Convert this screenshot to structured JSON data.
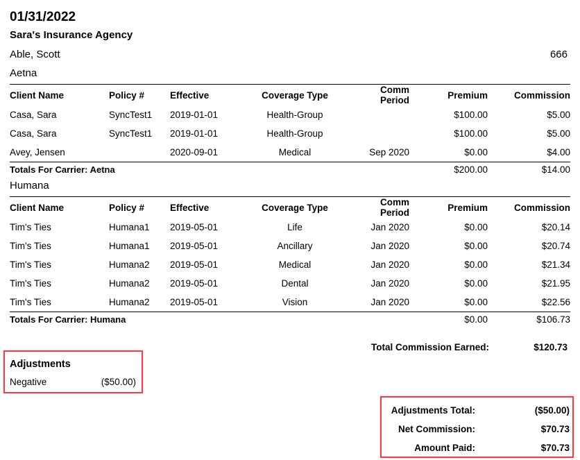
{
  "report": {
    "date": "01/31/2022",
    "agency": "Sara's Insurance Agency",
    "agent_name": "Able, Scott",
    "agent_id": "666"
  },
  "columns": [
    "Client Name",
    "Policy #",
    "Effective",
    "Coverage Type",
    "Comm Period",
    "Premium",
    "Commission"
  ],
  "carriers": [
    {
      "name": "Aetna",
      "rows": [
        {
          "client": "Casa, Sara",
          "policy": "SyncTest1",
          "effective": "2019-01-01",
          "coverage": "Health-Group",
          "period": "",
          "premium": "$100.00",
          "commission": "$5.00"
        },
        {
          "client": "Casa, Sara",
          "policy": "SyncTest1",
          "effective": "2019-01-01",
          "coverage": "Health-Group",
          "period": "",
          "premium": "$100.00",
          "commission": "$5.00"
        },
        {
          "client": "Avey, Jensen",
          "policy": "",
          "effective": "2020-09-01",
          "coverage": "Medical",
          "period": "Sep 2020",
          "premium": "$0.00",
          "commission": "$4.00"
        }
      ],
      "totals_label": "Totals For Carrier: Aetna",
      "total_premium": "$200.00",
      "total_commission": "$14.00"
    },
    {
      "name": "Humana",
      "rows": [
        {
          "client": "Tim's Ties",
          "policy": "Humana1",
          "effective": "2019-05-01",
          "coverage": "Life",
          "period": "Jan 2020",
          "premium": "$0.00",
          "commission": "$20.14"
        },
        {
          "client": "Tim's Ties",
          "policy": "Humana1",
          "effective": "2019-05-01",
          "coverage": "Ancillary",
          "period": "Jan 2020",
          "premium": "$0.00",
          "commission": "$20.74"
        },
        {
          "client": "Tim's Ties",
          "policy": "Humana2",
          "effective": "2019-05-01",
          "coverage": "Medical",
          "period": "Jan 2020",
          "premium": "$0.00",
          "commission": "$21.34"
        },
        {
          "client": "Tim's Ties",
          "policy": "Humana2",
          "effective": "2019-05-01",
          "coverage": "Dental",
          "period": "Jan 2020",
          "premium": "$0.00",
          "commission": "$21.95"
        },
        {
          "client": "Tim's Ties",
          "policy": "Humana2",
          "effective": "2019-05-01",
          "coverage": "Vision",
          "period": "Jan 2020",
          "premium": "$0.00",
          "commission": "$22.56"
        }
      ],
      "totals_label": "Totals For Carrier: Humana",
      "total_premium": "$0.00",
      "total_commission": "$106.73"
    }
  ],
  "total_commission_earned": {
    "label": "Total Commission Earned:",
    "value": "$120.73"
  },
  "adjustments": {
    "title": "Adjustments",
    "items": [
      {
        "label": "Negative",
        "value": "($50.00)"
      }
    ]
  },
  "summary": {
    "adjustments_total": {
      "label": "Adjustments Total:",
      "value": "($50.00)"
    },
    "net_commission": {
      "label": "Net Commission:",
      "value": "$70.73"
    },
    "amount_paid": {
      "label": "Amount Paid:",
      "value": "$70.73"
    }
  },
  "colors": {
    "highlight_border": "#e0474c"
  }
}
